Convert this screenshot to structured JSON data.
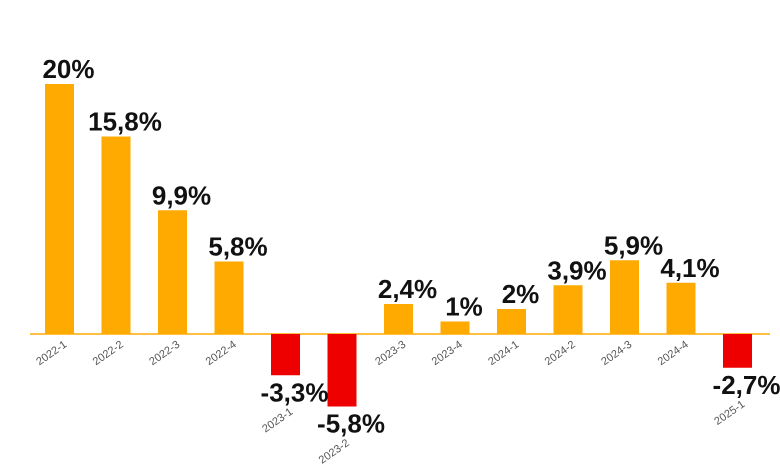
{
  "chart_data": {
    "type": "bar",
    "categories": [
      "2022-1",
      "2022-2",
      "2022-3",
      "2022-4",
      "2023-1",
      "2023-2",
      "2023-3",
      "2023-4",
      "2024-1",
      "2024-2",
      "2024-3",
      "2024-4",
      "2025-1"
    ],
    "values": [
      20,
      15.8,
      9.9,
      5.8,
      -3.3,
      -5.8,
      2.4,
      1,
      2,
      3.9,
      5.9,
      4.1,
      -2.7
    ],
    "labels": [
      "20%",
      "15,8%",
      "9,9%",
      "5,8%",
      "-3,3%",
      "-5,8%",
      "2,4%",
      "1%",
      "2%",
      "3,9%",
      "5,9%",
      "4,1%",
      "-2,7%"
    ],
    "title": "",
    "xlabel": "",
    "ylabel": "",
    "ylim": [
      -6,
      20
    ],
    "grid": false,
    "legend": "none",
    "colors": {
      "positive": "#FFAA00",
      "negative": "#EE0000",
      "axis": "#FFAA00"
    }
  }
}
